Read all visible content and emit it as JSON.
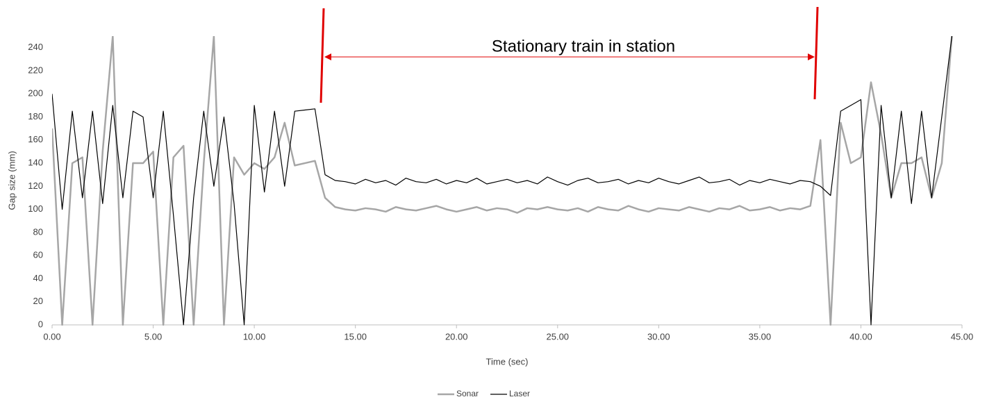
{
  "chart_data": {
    "type": "line",
    "annotation": "Stationary train in station",
    "x_label": "Time (sec)",
    "y_label": "Gap size (mm)",
    "x": [
      0,
      0.5,
      1,
      1.5,
      2,
      2.5,
      3,
      3.5,
      4,
      4.5,
      5,
      5.5,
      6,
      6.5,
      7,
      7.5,
      8,
      8.5,
      9,
      9.5,
      10,
      10.5,
      11,
      11.5,
      12,
      12.5,
      13,
      13.5,
      14,
      14.5,
      15,
      15.5,
      16,
      16.5,
      17,
      17.5,
      18,
      18.5,
      19,
      19.5,
      20,
      20.5,
      21,
      21.5,
      22,
      22.5,
      23,
      23.5,
      24,
      24.5,
      25,
      25.5,
      26,
      26.5,
      27,
      27.5,
      28,
      28.5,
      29,
      29.5,
      30,
      30.5,
      31,
      31.5,
      32,
      32.5,
      33,
      33.5,
      34,
      34.5,
      35,
      35.5,
      36,
      36.5,
      37,
      37.5,
      38,
      38.5,
      39,
      39.5,
      40,
      40.5,
      41,
      41.5,
      42,
      42.5,
      43,
      43.5,
      44,
      44.5
    ],
    "series": [
      {
        "name": "Sonar",
        "color": "#a6a6a6",
        "values": [
          170,
          0,
          140,
          145,
          0,
          150,
          250,
          0,
          140,
          140,
          150,
          0,
          145,
          155,
          0,
          140,
          250,
          0,
          145,
          130,
          140,
          135,
          145,
          175,
          138,
          140,
          142,
          110,
          102,
          100,
          99,
          101,
          100,
          98,
          102,
          100,
          99,
          101,
          103,
          100,
          98,
          100,
          102,
          99,
          101,
          100,
          97,
          101,
          100,
          102,
          100,
          99,
          101,
          98,
          102,
          100,
          99,
          103,
          100,
          98,
          101,
          100,
          99,
          102,
          100,
          98,
          101,
          100,
          103,
          99,
          100,
          102,
          99,
          101,
          100,
          103,
          160,
          0,
          175,
          140,
          145,
          210,
          165,
          110,
          140,
          140,
          145,
          110,
          140,
          250
        ]
      },
      {
        "name": "Laser",
        "color": "#000000",
        "values": [
          200,
          100,
          185,
          110,
          185,
          105,
          190,
          110,
          185,
          180,
          110,
          185,
          95,
          0,
          110,
          185,
          120,
          180,
          105,
          0,
          190,
          115,
          185,
          120,
          185,
          186,
          187,
          130,
          125,
          124,
          122,
          126,
          123,
          125,
          121,
          127,
          124,
          123,
          126,
          122,
          125,
          123,
          127,
          122,
          124,
          126,
          123,
          125,
          122,
          128,
          124,
          121,
          125,
          127,
          123,
          124,
          126,
          122,
          125,
          123,
          127,
          124,
          122,
          125,
          128,
          123,
          124,
          126,
          121,
          125,
          123,
          126,
          124,
          122,
          125,
          124,
          120,
          112,
          185,
          190,
          195,
          0,
          190,
          110,
          185,
          105,
          185,
          110,
          180,
          250
        ]
      }
    ],
    "xlim": [
      0,
      45
    ],
    "xticks": [
      {
        "value": 0,
        "label": "0.00"
      },
      {
        "value": 5,
        "label": "5.00"
      },
      {
        "value": 10,
        "label": "10.00"
      },
      {
        "value": 15,
        "label": "15.00"
      },
      {
        "value": 20,
        "label": "20.00"
      },
      {
        "value": 25,
        "label": "25.00"
      },
      {
        "value": 30,
        "label": "30.00"
      },
      {
        "value": 35,
        "label": "35.00"
      },
      {
        "value": 40,
        "label": "40.00"
      },
      {
        "value": 45,
        "label": "45.00"
      }
    ],
    "ylim": [
      0,
      250
    ],
    "yticks": [
      0,
      20,
      40,
      60,
      80,
      100,
      120,
      140,
      160,
      180,
      200,
      220,
      240
    ],
    "grid": false,
    "legend": "bottom"
  }
}
